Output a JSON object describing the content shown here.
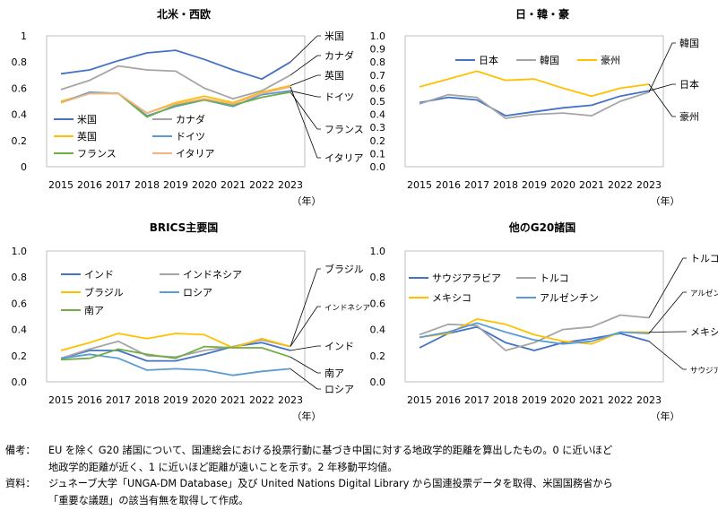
{
  "chart_data": [
    {
      "type": "line",
      "title": "北米・西欧",
      "x": [
        "2015",
        "2016",
        "2017",
        "2018",
        "2019",
        "2020",
        "2021",
        "2022",
        "2023"
      ],
      "x_unit": "（年）",
      "ylim": [
        0,
        1
      ],
      "yticks": [
        "0",
        "0.2",
        "0.4",
        "0.6",
        "0.8",
        "1"
      ],
      "legend": [
        "米国",
        "カナダ",
        "英国",
        "ドイツ",
        "フランス",
        "イタリア"
      ],
      "series": [
        {
          "name": "米国",
          "color": "#4472C4",
          "values": [
            0.71,
            0.74,
            0.81,
            0.87,
            0.89,
            0.82,
            0.74,
            0.67,
            0.8
          ],
          "end_label": "米国"
        },
        {
          "name": "カナダ",
          "color": "#A5A5A5",
          "values": [
            0.59,
            0.66,
            0.77,
            0.74,
            0.73,
            0.6,
            0.52,
            0.58,
            0.7
          ],
          "end_label": "カナダ"
        },
        {
          "name": "英国",
          "color": "#FFC000",
          "values": [
            0.5,
            0.56,
            0.56,
            0.41,
            0.49,
            0.54,
            0.49,
            0.57,
            0.62
          ],
          "end_label": "英国"
        },
        {
          "name": "ドイツ",
          "color": "#5B9BD5",
          "values": [
            0.49,
            0.57,
            0.56,
            0.39,
            0.46,
            0.51,
            0.46,
            0.55,
            0.58
          ],
          "end_label": "ドイツ"
        },
        {
          "name": "フランス",
          "color": "#70AD47",
          "values": [
            0.49,
            0.56,
            0.56,
            0.38,
            0.47,
            0.51,
            0.47,
            0.53,
            0.57
          ],
          "end_label": "フランス"
        },
        {
          "name": "イタリア",
          "color": "#F4B183",
          "values": [
            0.49,
            0.56,
            0.56,
            0.41,
            0.48,
            0.52,
            0.48,
            0.56,
            0.61
          ],
          "end_label": "イタリア"
        }
      ]
    },
    {
      "type": "line",
      "title": "日・韓・豪",
      "x": [
        "2015",
        "2016",
        "2017",
        "2018",
        "2019",
        "2020",
        "2021",
        "2022",
        "2023"
      ],
      "x_unit": "（年）",
      "ylim": [
        0,
        1
      ],
      "yticks": [
        "0.0",
        "0.1",
        "0.2",
        "0.3",
        "0.4",
        "0.5",
        "0.6",
        "0.7",
        "0.8",
        "0.9",
        "1.0"
      ],
      "legend": [
        "日本",
        "韓国",
        "豪州"
      ],
      "series": [
        {
          "name": "日本",
          "color": "#4472C4",
          "values": [
            0.49,
            0.53,
            0.51,
            0.39,
            0.42,
            0.45,
            0.47,
            0.54,
            0.58
          ],
          "end_label": "日本"
        },
        {
          "name": "韓国",
          "color": "#A5A5A5",
          "values": [
            0.48,
            0.55,
            0.53,
            0.37,
            0.4,
            0.41,
            0.39,
            0.5,
            0.57
          ],
          "end_label": "韓国"
        },
        {
          "name": "豪州",
          "color": "#FFC000",
          "values": [
            0.61,
            0.67,
            0.73,
            0.66,
            0.67,
            0.6,
            0.54,
            0.6,
            0.63
          ],
          "end_label": "豪州"
        }
      ]
    },
    {
      "type": "line",
      "title": "BRICS主要国",
      "x": [
        "2015",
        "2016",
        "2017",
        "2018",
        "2019",
        "2020",
        "2021",
        "2022",
        "2023"
      ],
      "x_unit": "（年）",
      "ylim": [
        0,
        1
      ],
      "yticks": [
        "0.0",
        "0.2",
        "0.4",
        "0.6",
        "0.8",
        "1.0"
      ],
      "legend": [
        "インド",
        "インドネシア",
        "ブラジル",
        "ロシア",
        "南ア"
      ],
      "series": [
        {
          "name": "インド",
          "color": "#4472C4",
          "values": [
            0.18,
            0.24,
            0.24,
            0.16,
            0.16,
            0.21,
            0.27,
            0.3,
            0.24
          ],
          "end_label": "インド"
        },
        {
          "name": "インドネシア",
          "color": "#A5A5A5",
          "values": [
            0.18,
            0.25,
            0.31,
            0.2,
            0.19,
            0.24,
            0.27,
            0.32,
            0.27
          ],
          "end_label": "インドネシア"
        },
        {
          "name": "ブラジル",
          "color": "#FFC000",
          "values": [
            0.24,
            0.3,
            0.37,
            0.33,
            0.37,
            0.36,
            0.26,
            0.33,
            0.27
          ],
          "end_label": "ブラジル"
        },
        {
          "name": "ロシア",
          "color": "#5B9BD5",
          "values": [
            0.18,
            0.21,
            0.18,
            0.09,
            0.1,
            0.09,
            0.05,
            0.08,
            0.1
          ],
          "end_label": "ロシア"
        },
        {
          "name": "南ア",
          "color": "#70AD47",
          "values": [
            0.17,
            0.18,
            0.25,
            0.21,
            0.18,
            0.27,
            0.26,
            0.26,
            0.19
          ],
          "end_label": "南ア"
        }
      ]
    },
    {
      "type": "line",
      "title": "他のG20諸国",
      "x": [
        "2015",
        "2016",
        "2017",
        "2018",
        "2019",
        "2020",
        "2021",
        "2022",
        "2023"
      ],
      "x_unit": "（年）",
      "ylim": [
        0,
        1
      ],
      "yticks": [
        "0.0",
        "0.2",
        "0.4",
        "0.6",
        "0.8",
        "1.0"
      ],
      "legend": [
        "サウジアラビア",
        "トルコ",
        "メキシコ",
        "アルゼンチン"
      ],
      "series": [
        {
          "name": "サウジアラビア",
          "color": "#4472C4",
          "values": [
            0.26,
            0.37,
            0.42,
            0.3,
            0.24,
            0.3,
            0.33,
            0.37,
            0.31
          ],
          "end_label": "サウジアラビア"
        },
        {
          "name": "トルコ",
          "color": "#A5A5A5",
          "values": [
            0.36,
            0.44,
            0.43,
            0.24,
            0.3,
            0.4,
            0.42,
            0.51,
            0.49
          ],
          "end_label": "トルコ"
        },
        {
          "name": "メキシコ",
          "color": "#FFC000",
          "values": [
            0.34,
            0.37,
            0.48,
            0.44,
            0.36,
            0.31,
            0.29,
            0.38,
            0.38
          ],
          "end_label": "メキシコ"
        },
        {
          "name": "アルゼンチン",
          "color": "#5B9BD5",
          "values": [
            0.34,
            0.38,
            0.45,
            0.38,
            0.32,
            0.29,
            0.31,
            0.38,
            0.37
          ],
          "end_label": "アルゼンチン"
        }
      ]
    }
  ],
  "notes": {
    "remarks_label": "備考：",
    "remarks_line1": "EU を除く G20 諸国について、国連総会における投票行動に基づき中国に対する地政学的距離を算出したもの。0 に近いほど",
    "remarks_line2": "地政学的距離が近く、1 に近いほど距離が遠いことを示す。2 年移動平均値。",
    "source_label": "資料：",
    "source_line1": "ジュネーブ大学「UNGA-DM Database」及び United Nations Digital Library から国連投票データを取得、米国国務省から",
    "source_line2": "「重要な議題」の該当有無を取得して作成。"
  }
}
